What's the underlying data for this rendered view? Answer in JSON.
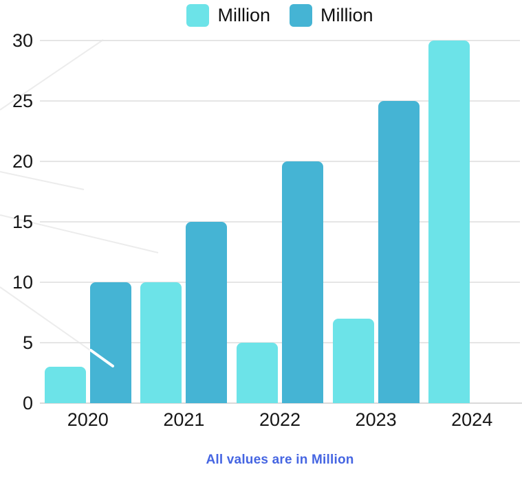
{
  "chart_data": {
    "type": "bar",
    "title": "",
    "xlabel": "",
    "ylabel": "",
    "categories": [
      "2020",
      "2021",
      "2022",
      "2023",
      "2024"
    ],
    "series": [
      {
        "name": "Million",
        "color": "#6CE3E8",
        "values": [
          3,
          10,
          5,
          7,
          30
        ]
      },
      {
        "name": "Million",
        "color": "#45B4D4",
        "values": [
          10,
          15,
          20,
          25,
          null
        ]
      }
    ],
    "ylim": [
      0,
      30
    ],
    "yticks": [
      0,
      5,
      10,
      15,
      20,
      25,
      30
    ],
    "grid": true,
    "grid_color": "#E5E5E5",
    "axis_color": "#D9D9D9",
    "tick_text_color": "#161616",
    "legend_position": "top",
    "footnote": "All values are in Million",
    "footnote_color": "#4565E2"
  }
}
